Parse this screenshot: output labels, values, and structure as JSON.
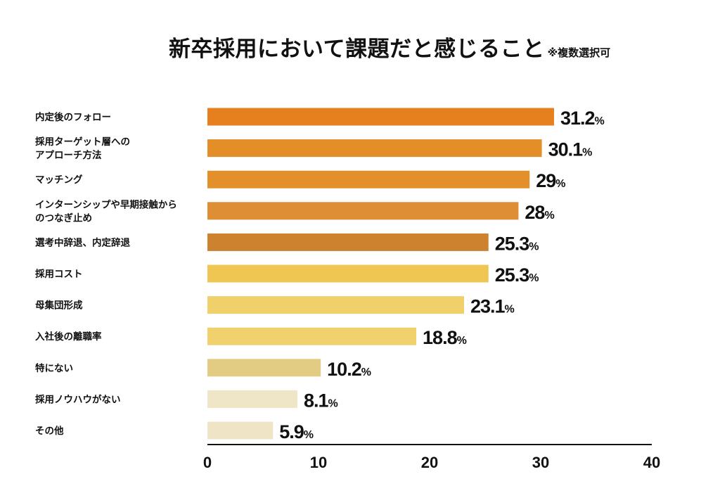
{
  "chart_data": {
    "type": "bar",
    "orientation": "horizontal",
    "title": "新卒採用において課題だと感じること",
    "subtitle": "※複数選択可",
    "categories": [
      "内定後のフォロー",
      "採用ターゲット層への\nアプローチ方法",
      "マッチング",
      "インターンシップや早期接触から\nのつなぎ止め",
      "選考中辞退、内定辞退",
      "採用コスト",
      "母集団形成",
      "入社後の離職率",
      "特にない",
      "採用ノウハウがない",
      "その他"
    ],
    "values": [
      31.2,
      30.1,
      29,
      28,
      25.3,
      25.3,
      23.1,
      18.8,
      10.2,
      8.1,
      5.9
    ],
    "value_labels": [
      "31.2",
      "30.1",
      "29",
      "28",
      "25.3",
      "25.3",
      "23.1",
      "18.8",
      "10.2",
      "8.1",
      "5.9"
    ],
    "unit": "%",
    "colors": [
      "#E6801E",
      "#E38E27",
      "#E38F2A",
      "#DE8E33",
      "#CD8230",
      "#EFC652",
      "#F0D06A",
      "#F1D06E",
      "#E2CB82",
      "#EFE6C7",
      "#EFE5C6"
    ],
    "xlim": [
      0,
      40
    ],
    "xticks": [
      0,
      10,
      20,
      30,
      40
    ],
    "xlabel": "",
    "ylabel": "",
    "grid": false,
    "legend": "none"
  }
}
